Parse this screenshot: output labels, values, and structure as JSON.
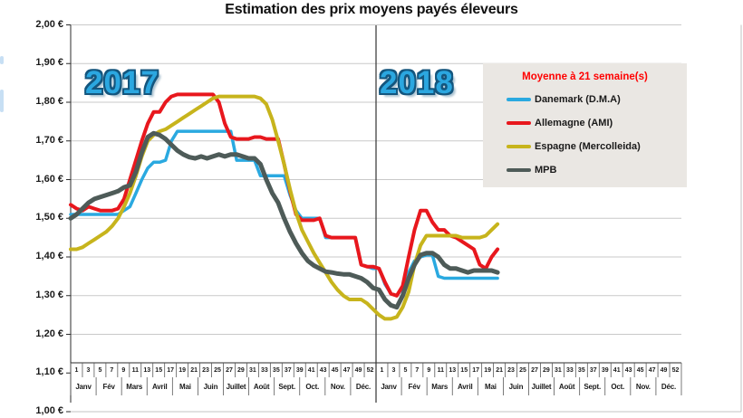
{
  "chart_data": {
    "type": "line",
    "title": "Estimation des prix moyens payés éleveurs",
    "y_axis": {
      "min": 1.0,
      "max": 2.0,
      "step": 0.1,
      "tick_labels": [
        "2,00 €",
        "1,90 €",
        "1,80 €",
        "1,70 €",
        "1,60 €",
        "1,50 €",
        "1,40 €",
        "1,30 €",
        "1,20 €",
        "1,10 €",
        "1,00 €"
      ]
    },
    "x_axis": {
      "month_labels": [
        "Janv",
        "Fév",
        "Mars",
        "Avril",
        "Mai",
        "Juin",
        "Juillet",
        "Août",
        "Sept.",
        "Oct.",
        "Nov.",
        "Déc."
      ],
      "years": [
        {
          "label": "2017",
          "week_tick_labels": [
            "1",
            "3",
            "5",
            "7",
            "9",
            "11",
            "13",
            "15",
            "17",
            "19",
            "21",
            "23",
            "25",
            "27",
            "29",
            "31",
            "33",
            "35",
            "37",
            "39",
            "41",
            "43",
            "45",
            "47",
            "49",
            "52"
          ]
        },
        {
          "label": "2018",
          "week_tick_labels": [
            "1",
            "3",
            "5",
            "7",
            "9",
            "11",
            "13",
            "15",
            "17",
            "19",
            "21",
            "23",
            "25",
            "27",
            "29",
            "31",
            "33",
            "35",
            "37",
            "39",
            "41",
            "43",
            "45",
            "47",
            "49",
            "52"
          ]
        }
      ]
    },
    "legend": {
      "title": "Moyenne à  21 semaine(s)"
    },
    "series": [
      {
        "name": "Danemark (D.M.A)",
        "color": "#2AA9E0",
        "width": 3.5,
        "values_2017": [
          1.51,
          1.51,
          1.51,
          1.51,
          1.51,
          1.51,
          1.51,
          1.51,
          1.51,
          1.52,
          1.53,
          1.565,
          1.6,
          1.63,
          1.645,
          1.645,
          1.65,
          1.7,
          1.725,
          1.725,
          1.725,
          1.725,
          1.725,
          1.725,
          1.725,
          1.725,
          1.725,
          1.725,
          1.65,
          1.65,
          1.65,
          1.65,
          1.61,
          1.61,
          1.61,
          1.61,
          1.61,
          1.56,
          1.52,
          1.5,
          1.5,
          1.5,
          1.5,
          1.45,
          1.45,
          1.45,
          1.45,
          1.45,
          1.45,
          1.38,
          1.375,
          1.37
        ],
        "values_2018": [
          1.37,
          1.33,
          1.305,
          1.3,
          1.32,
          1.36,
          1.39,
          1.4,
          1.405,
          1.405,
          1.35,
          1.345,
          1.345,
          1.345,
          1.345,
          1.345,
          1.345,
          1.345,
          1.345,
          1.345,
          1.345
        ]
      },
      {
        "name": "Allemagne (AMI)",
        "color": "#E8171D",
        "width": 4,
        "values_2017": [
          1.535,
          1.525,
          1.52,
          1.53,
          1.525,
          1.52,
          1.52,
          1.52,
          1.525,
          1.55,
          1.6,
          1.65,
          1.7,
          1.745,
          1.775,
          1.775,
          1.8,
          1.815,
          1.82,
          1.82,
          1.82,
          1.82,
          1.82,
          1.82,
          1.82,
          1.8,
          1.745,
          1.71,
          1.705,
          1.705,
          1.705,
          1.71,
          1.71,
          1.705,
          1.705,
          1.705,
          1.64,
          1.57,
          1.51,
          1.495,
          1.495,
          1.495,
          1.5,
          1.455,
          1.45,
          1.45,
          1.45,
          1.45,
          1.45,
          1.38,
          1.375,
          1.375
        ],
        "values_2018": [
          1.37,
          1.335,
          1.305,
          1.3,
          1.325,
          1.4,
          1.47,
          1.52,
          1.52,
          1.49,
          1.47,
          1.47,
          1.455,
          1.45,
          1.44,
          1.43,
          1.42,
          1.38,
          1.37,
          1.4,
          1.42
        ]
      },
      {
        "name": "Espagne (Mercolleida)",
        "color": "#C7B41C",
        "width": 4,
        "values_2017": [
          1.42,
          1.42,
          1.425,
          1.435,
          1.445,
          1.455,
          1.465,
          1.48,
          1.5,
          1.53,
          1.565,
          1.61,
          1.66,
          1.7,
          1.715,
          1.725,
          1.73,
          1.74,
          1.75,
          1.76,
          1.77,
          1.78,
          1.79,
          1.8,
          1.81,
          1.815,
          1.815,
          1.815,
          1.815,
          1.815,
          1.815,
          1.815,
          1.81,
          1.795,
          1.755,
          1.7,
          1.64,
          1.575,
          1.515,
          1.47,
          1.44,
          1.41,
          1.385,
          1.36,
          1.335,
          1.315,
          1.3,
          1.29,
          1.29,
          1.29,
          1.28,
          1.265
        ],
        "values_2018": [
          1.25,
          1.24,
          1.24,
          1.245,
          1.27,
          1.31,
          1.38,
          1.43,
          1.455,
          1.455,
          1.455,
          1.455,
          1.455,
          1.455,
          1.45,
          1.45,
          1.45,
          1.45,
          1.455,
          1.47,
          1.485
        ]
      },
      {
        "name": "MPB",
        "color": "#4E5B58",
        "width": 5,
        "values_2017": [
          1.5,
          1.51,
          1.525,
          1.54,
          1.55,
          1.555,
          1.56,
          1.565,
          1.57,
          1.58,
          1.585,
          1.62,
          1.67,
          1.71,
          1.72,
          1.715,
          1.705,
          1.69,
          1.675,
          1.665,
          1.658,
          1.655,
          1.66,
          1.655,
          1.66,
          1.665,
          1.66,
          1.665,
          1.665,
          1.66,
          1.655,
          1.655,
          1.64,
          1.6,
          1.565,
          1.54,
          1.5,
          1.465,
          1.435,
          1.41,
          1.39,
          1.378,
          1.37,
          1.362,
          1.36,
          1.357,
          1.355,
          1.355,
          1.35,
          1.345,
          1.335,
          1.32
        ],
        "values_2018": [
          1.315,
          1.29,
          1.275,
          1.27,
          1.3,
          1.345,
          1.38,
          1.405,
          1.41,
          1.41,
          1.4,
          1.38,
          1.37,
          1.37,
          1.365,
          1.36,
          1.365,
          1.365,
          1.365,
          1.365,
          1.36
        ]
      }
    ],
    "layout": {
      "grid": true,
      "legend_position": "top-right",
      "year_divider_between_weeks": [
        52,
        1
      ]
    }
  },
  "style": {
    "background": "#FFFFFF",
    "grid_color": "#C9C9C9",
    "axis_color": "#2B2B2B",
    "tick_color": "#595959",
    "frame_color": "#C3C3C3",
    "divider_color": "#333333",
    "text_color": "#1A1A1A",
    "legend_bg": "#EAE7E3",
    "legend_title_color": "#FF0000",
    "year_label_color": "#2BA7E0",
    "year_label_outline": "#14567E"
  }
}
